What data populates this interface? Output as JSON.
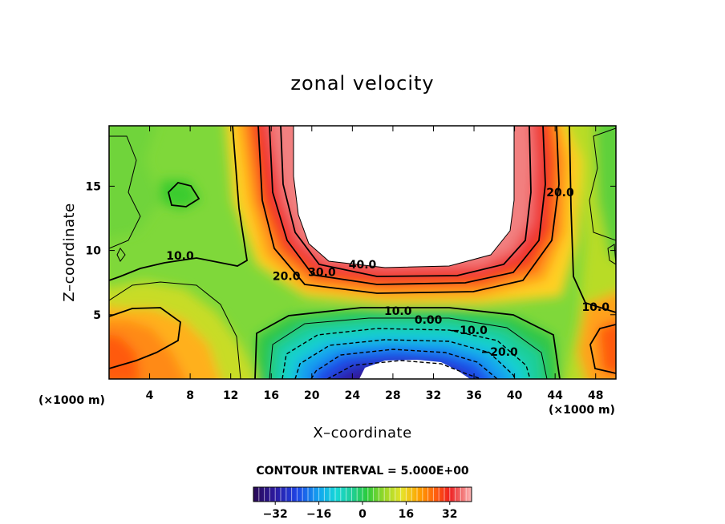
{
  "chart_data": {
    "type": "contour",
    "title": "zonal velocity",
    "xlabel": "X–coordinate",
    "ylabel": "Z–coordinate",
    "x_unit": "(×1000 m)",
    "x_unit_right": "(×1000 m)",
    "xlim": [
      0,
      50
    ],
    "ylim": [
      0,
      19.7
    ],
    "x_ticks": [
      4,
      8,
      12,
      16,
      20,
      24,
      28,
      32,
      36,
      40,
      44,
      48
    ],
    "y_ticks": [
      5,
      10,
      15
    ],
    "contour_interval": 5,
    "contour_interval_text": "CONTOUR INTERVAL = 5.000E+00",
    "colorbar": {
      "range": [
        -40,
        40
      ],
      "ticks": [
        -32,
        -16,
        0,
        16,
        32
      ],
      "tick_labels": [
        "−32",
        "−16",
        "0",
        "16",
        "32"
      ]
    },
    "contour_labels": [
      {
        "text": "10.0",
        "x": 7.0,
        "y": 9.3
      },
      {
        "text": "20.0",
        "x": 17.5,
        "y": 7.7
      },
      {
        "text": "30.0",
        "x": 21.0,
        "y": 8.0
      },
      {
        "text": "40.0",
        "x": 25.0,
        "y": 8.6
      },
      {
        "text": "20.0",
        "x": 44.5,
        "y": 14.2
      },
      {
        "text": "10.0",
        "x": 28.5,
        "y": 5.0
      },
      {
        "text": "0.00",
        "x": 31.5,
        "y": 4.3
      },
      {
        "text": "−10.0",
        "x": 35.5,
        "y": 3.5
      },
      {
        "text": "−20.0",
        "x": 38.5,
        "y": 1.8
      },
      {
        "text": "10.0",
        "x": 48.0,
        "y": 5.3
      }
    ],
    "features": {
      "jet_max": {
        "region": "upper center",
        "value": "> 40",
        "shape": "U-shaped"
      },
      "jet_min": {
        "region": "bottom center",
        "x": 30,
        "z": 0,
        "value": "< -35"
      },
      "secondary_max_left": {
        "x": 0.5,
        "z": 2,
        "value": 30
      },
      "secondary_max_right": {
        "x": 49.5,
        "z": 2,
        "value": 30
      }
    },
    "grid": false
  },
  "colors": {
    "palette": [
      "#2a0a55",
      "#2b1aa0",
      "#1e44e6",
      "#12a4f0",
      "#16d8d8",
      "#1fcf9a",
      "#2bcc3c",
      "#9ad828",
      "#e6e42a",
      "#ffa000",
      "#ff5a10",
      "#ef2020",
      "#f06a6a",
      "#ffb8b8"
    ]
  }
}
